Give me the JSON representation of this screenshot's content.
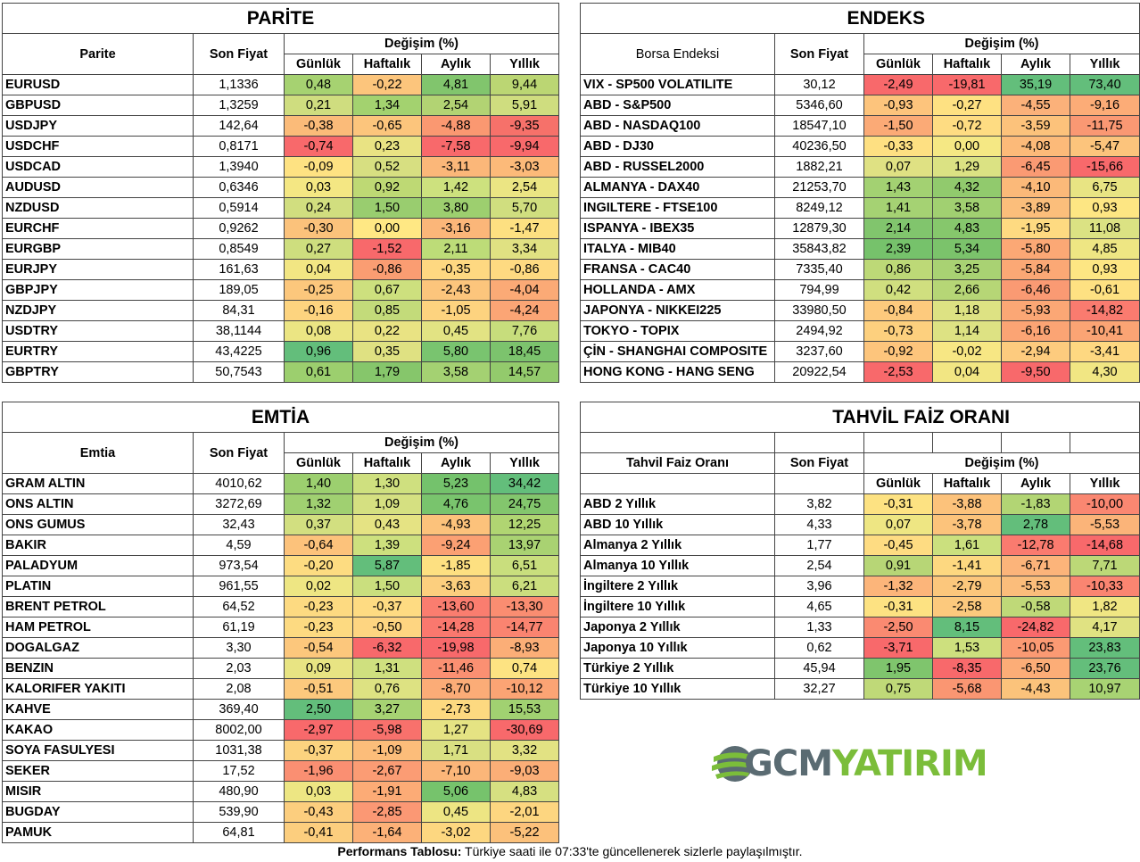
{
  "parite": {
    "title": "PARİTE",
    "col_name": "Parite",
    "col_price": "Son Fiyat",
    "col_change": "Değişim (%)",
    "periods": [
      "Günlük",
      "Haftalık",
      "Aylık",
      "Yıllık"
    ],
    "rows": [
      {
        "name": "EURUSD",
        "price": "1,1336",
        "vals": [
          "0,48",
          "-0,22",
          "4,81",
          "9,44"
        ],
        "colors": [
          "#a6d271",
          "#fcc57c",
          "#81c56d",
          "#bbd673"
        ]
      },
      {
        "name": "GBPUSD",
        "price": "1,3259",
        "vals": [
          "0,21",
          "1,34",
          "2,54",
          "5,91"
        ],
        "colors": [
          "#cfdd7f",
          "#a3d26f",
          "#b2d373",
          "#cfdd7f"
        ]
      },
      {
        "name": "USDJPY",
        "price": "142,64",
        "vals": [
          "-0,38",
          "-0,65",
          "-4,88",
          "-9,35"
        ],
        "colors": [
          "#fbbb79",
          "#fcc57c",
          "#fa9871",
          "#f6716a"
        ]
      },
      {
        "name": "USDCHF",
        "price": "0,8171",
        "vals": [
          "-0,74",
          "0,23",
          "-7,58",
          "-9,94"
        ],
        "colors": [
          "#f8696b",
          "#e9e383",
          "#f8696b",
          "#f8696b"
        ]
      },
      {
        "name": "USDCAD",
        "price": "1,3940",
        "vals": [
          "-0,09",
          "0,52",
          "-3,11",
          "-3,03"
        ],
        "colors": [
          "#fee282",
          "#d7df81",
          "#fbb779",
          "#fcba79"
        ]
      },
      {
        "name": "AUDUSD",
        "price": "0,6346",
        "vals": [
          "0,03",
          "0,92",
          "1,42",
          "2,54"
        ],
        "colors": [
          "#f4e783",
          "#bed974",
          "#cde17e",
          "#ebe583"
        ]
      },
      {
        "name": "NZDUSD",
        "price": "0,5914",
        "vals": [
          "0,24",
          "1,50",
          "3,80",
          "5,70"
        ],
        "colors": [
          "#d1de7f",
          "#99cd6f",
          "#9dcf6f",
          "#d0de7f"
        ]
      },
      {
        "name": "EURCHF",
        "price": "0,9262",
        "vals": [
          "-0,30",
          "0,00",
          "-3,16",
          "-1,47"
        ],
        "colors": [
          "#fbc27b",
          "#ffe884",
          "#fbb679",
          "#fde081"
        ]
      },
      {
        "name": "EURGBP",
        "price": "0,8549",
        "vals": [
          "0,27",
          "-1,52",
          "2,11",
          "3,34"
        ],
        "colors": [
          "#cede7e",
          "#f8696b",
          "#bddc78",
          "#e0e182"
        ]
      },
      {
        "name": "EURJPY",
        "price": "161,63",
        "vals": [
          "0,04",
          "-0,86",
          "-0,35",
          "-0,86"
        ],
        "colors": [
          "#f2e683",
          "#fa9d72",
          "#fed881",
          "#feda81"
        ]
      },
      {
        "name": "GBPJPY",
        "price": "189,05",
        "vals": [
          "-0,25",
          "0,67",
          "-2,43",
          "-4,04"
        ],
        "colors": [
          "#fcc77c",
          "#cde07e",
          "#fcc57c",
          "#fbaa76"
        ]
      },
      {
        "name": "NZDJPY",
        "price": "84,31",
        "vals": [
          "-0,16",
          "0,85",
          "-1,05",
          "-4,24"
        ],
        "colors": [
          "#fdd47f",
          "#c3db7a",
          "#fdd37f",
          "#fba575"
        ]
      },
      {
        "name": "USDTRY",
        "price": "38,1144",
        "vals": [
          "0,08",
          "0,22",
          "0,45",
          "7,76"
        ],
        "colors": [
          "#ebe583",
          "#e9e383",
          "#e2e383",
          "#c7dd7c"
        ]
      },
      {
        "name": "EURTRY",
        "price": "43,4225",
        "vals": [
          "0,96",
          "0,35",
          "5,80",
          "18,45"
        ],
        "colors": [
          "#63be7b",
          "#dfe182",
          "#79c46f",
          "#7cc36d"
        ]
      },
      {
        "name": "GBPTRY",
        "price": "50,7543",
        "vals": [
          "0,61",
          "1,79",
          "3,58",
          "14,57"
        ],
        "colors": [
          "#9ccf6e",
          "#86c66b",
          "#a4d172",
          "#93ca6c"
        ]
      }
    ]
  },
  "endeks": {
    "title": "ENDEKS",
    "col_name": "Borsa Endeksi",
    "col_price": "Son Fiyat",
    "col_change": "Değişim (%)",
    "periods": [
      "Günlük",
      "Haftalık",
      "Aylık",
      "Yıllık"
    ],
    "rows": [
      {
        "name": "VIX  - SP500 VOLATILITE",
        "price": "30,12",
        "vals": [
          "-2,49",
          "-19,81",
          "35,19",
          "73,40"
        ],
        "colors": [
          "#f8696b",
          "#f8696b",
          "#63be7b",
          "#63be7b"
        ]
      },
      {
        "name": "ABD - S&P500",
        "price": "5346,60",
        "vals": [
          "-0,93",
          "-0,27",
          "-4,55",
          "-9,16"
        ],
        "colors": [
          "#fdc47c",
          "#fee182",
          "#fbb17a",
          "#fcac77"
        ]
      },
      {
        "name": "ABD - NASDAQ100",
        "price": "18547,10",
        "vals": [
          "-1,50",
          "-0,72",
          "-3,59",
          "-11,75"
        ],
        "colors": [
          "#fbaa76",
          "#fedc82",
          "#fcc27b",
          "#fa9873"
        ]
      },
      {
        "name": "ABD - DJ30",
        "price": "40236,50",
        "vals": [
          "-0,33",
          "0,00",
          "-4,08",
          "-5,47"
        ],
        "colors": [
          "#fee082",
          "#f5e884",
          "#fcba79",
          "#fcc47c"
        ]
      },
      {
        "name": "ABD - RUSSEL2000",
        "price": "1882,21",
        "vals": [
          "0,07",
          "1,29",
          "-6,45",
          "-15,66"
        ],
        "colors": [
          "#dfe183",
          "#dbe283",
          "#fa9a73",
          "#f8696b"
        ]
      },
      {
        "name": "ALMANYA - DAX40",
        "price": "21253,70",
        "vals": [
          "1,43",
          "4,32",
          "-4,10",
          "6,75"
        ],
        "colors": [
          "#a3d172",
          "#91ca6d",
          "#fbb979",
          "#e8e483"
        ]
      },
      {
        "name": "INGILTERE - FTSE100",
        "price": "8249,12",
        "vals": [
          "1,41",
          "3,58",
          "-3,89",
          "0,93"
        ],
        "colors": [
          "#a5d273",
          "#a1d071",
          "#fbbe7b",
          "#fde683"
        ]
      },
      {
        "name": "ISPANYA - IBEX35",
        "price": "12879,30",
        "vals": [
          "2,14",
          "4,83",
          "-1,95",
          "11,08"
        ],
        "colors": [
          "#81c56d",
          "#86c76c",
          "#feda81",
          "#dbe283"
        ]
      },
      {
        "name": "ITALYA - MIB40",
        "price": "35843,82",
        "vals": [
          "2,39",
          "5,34",
          "-5,80",
          "4,85"
        ],
        "colors": [
          "#76c26b",
          "#7bc36b",
          "#fba875",
          "#eee683"
        ]
      },
      {
        "name": "FRANSA - CAC40",
        "price": "7335,40",
        "vals": [
          "0,86",
          "3,25",
          "-5,84",
          "0,93"
        ],
        "colors": [
          "#bdd977",
          "#a9d273",
          "#fba875",
          "#fde683"
        ]
      },
      {
        "name": "HOLLANDA - AMX",
        "price": "794,99",
        "vals": [
          "0,42",
          "2,66",
          "-6,46",
          "-0,61"
        ],
        "colors": [
          "#d0df7f",
          "#b6d676",
          "#fa9a73",
          "#fee182"
        ]
      },
      {
        "name": "JAPONYA - NIKKEI225",
        "price": "33980,50",
        "vals": [
          "-0,84",
          "1,18",
          "-5,93",
          "-14,82"
        ],
        "colors": [
          "#fdca7d",
          "#dde283",
          "#fba775",
          "#fa7b6f"
        ]
      },
      {
        "name": "TOKYO - TOPIX",
        "price": "2494,92",
        "vals": [
          "-0,73",
          "1,14",
          "-6,16",
          "-10,41"
        ],
        "colors": [
          "#fdd07e",
          "#dde283",
          "#fba474",
          "#fba474"
        ]
      },
      {
        "name": "ÇİN - SHANGHAI COMPOSITE",
        "price": "3237,60",
        "vals": [
          "-0,92",
          "-0,02",
          "-2,94",
          "-3,41"
        ],
        "colors": [
          "#fdc57c",
          "#f7e784",
          "#fdcb7e",
          "#fed881"
        ]
      },
      {
        "name": "HONG KONG - HANG SENG",
        "price": "20922,54",
        "vals": [
          "-2,53",
          "0,04",
          "-9,50",
          "4,30"
        ],
        "colors": [
          "#f8696b",
          "#f2e683",
          "#f8696b",
          "#f1e683"
        ]
      }
    ]
  },
  "emtia": {
    "title": "EMTİA",
    "col_name": "Emtia",
    "col_price": "Son Fiyat",
    "col_change": "Değişim (%)",
    "periods": [
      "Günlük",
      "Haftalık",
      "Aylık",
      "Yıllık"
    ],
    "rows": [
      {
        "name": "GRAM ALTIN",
        "price": "4010,62",
        "vals": [
          "1,40",
          "1,30",
          "5,23",
          "34,42"
        ],
        "colors": [
          "#9ccf6f",
          "#cfe07f",
          "#74c26c",
          "#63be7b"
        ]
      },
      {
        "name": "ONS ALTIN",
        "price": "3272,69",
        "vals": [
          "1,32",
          "1,09",
          "4,76",
          "24,75"
        ],
        "colors": [
          "#a0d071",
          "#d5e081",
          "#79c46d",
          "#83c66d"
        ]
      },
      {
        "name": "ONS GUMUS",
        "price": "32,43",
        "vals": [
          "0,37",
          "0,43",
          "-4,93",
          "12,25"
        ],
        "colors": [
          "#d2df80",
          "#e5e383",
          "#fcc27b",
          "#b0d572"
        ]
      },
      {
        "name": "BAKIR",
        "price": "4,59",
        "vals": [
          "-0,64",
          "1,39",
          "-9,24",
          "13,97"
        ],
        "colors": [
          "#fcc27b",
          "#cde07e",
          "#fba073",
          "#a9d272"
        ]
      },
      {
        "name": "PALADYUM",
        "price": "973,54",
        "vals": [
          "-0,20",
          "5,87",
          "-1,85",
          "6,51"
        ],
        "colors": [
          "#fddc81",
          "#63be7b",
          "#fde081",
          "#c9de7d"
        ]
      },
      {
        "name": "PLATIN",
        "price": "961,55",
        "vals": [
          "0,02",
          "1,50",
          "-3,63",
          "6,21"
        ],
        "colors": [
          "#eee683",
          "#cadf7e",
          "#fccf7e",
          "#cbde7e"
        ]
      },
      {
        "name": "BRENT PETROL",
        "price": "64,52",
        "vals": [
          "-0,23",
          "-0,37",
          "-13,60",
          "-13,30"
        ],
        "colors": [
          "#fdda81",
          "#fedb82",
          "#fa7d6f",
          "#fa8d71"
        ]
      },
      {
        "name": "HAM PETROL",
        "price": "61,19",
        "vals": [
          "-0,23",
          "-0,50",
          "-14,28",
          "-14,77"
        ],
        "colors": [
          "#fdda81",
          "#fed581",
          "#fa786e",
          "#fa8470"
        ]
      },
      {
        "name": "DOGALGAZ",
        "price": "3,30",
        "vals": [
          "-0,54",
          "-6,32",
          "-19,98",
          "-8,93"
        ],
        "colors": [
          "#fcc77c",
          "#f8696b",
          "#f8696b",
          "#fbae77"
        ]
      },
      {
        "name": "BENZIN",
        "price": "2,03",
        "vals": [
          "0,09",
          "1,31",
          "-11,46",
          "0,74"
        ],
        "colors": [
          "#e8e483",
          "#cfe07f",
          "#fb9072",
          "#fde382"
        ]
      },
      {
        "name": "KALORIFER YAKITI",
        "price": "2,08",
        "vals": [
          "-0,51",
          "0,76",
          "-8,70",
          "-10,12"
        ],
        "colors": [
          "#fcc97d",
          "#dde282",
          "#fbac77",
          "#fba474"
        ]
      },
      {
        "name": "KAHVE",
        "price": "369,40",
        "vals": [
          "2,50",
          "3,27",
          "-2,73",
          "15,53"
        ],
        "colors": [
          "#63be7b",
          "#a7d373",
          "#fdd980",
          "#a1d171"
        ]
      },
      {
        "name": "KAKAO",
        "price": "8002,00",
        "vals": [
          "-2,97",
          "-5,98",
          "1,27",
          "-30,69"
        ],
        "colors": [
          "#f8696b",
          "#f8716c",
          "#e5e383",
          "#f8696b"
        ]
      },
      {
        "name": "SOYA FASULYESI",
        "price": "1031,38",
        "vals": [
          "-0,37",
          "-1,09",
          "1,71",
          "3,32"
        ],
        "colors": [
          "#fcd37f",
          "#fcbd7a",
          "#d9e082",
          "#e2e283"
        ]
      },
      {
        "name": "SEKER",
        "price": "17,52",
        "vals": [
          "-1,96",
          "-2,67",
          "-7,10",
          "-9,03"
        ],
        "colors": [
          "#fa8f72",
          "#fb9c74",
          "#fbb679",
          "#fbae77"
        ]
      },
      {
        "name": "MISIR",
        "price": "480,90",
        "vals": [
          "0,03",
          "-1,91",
          "5,06",
          "4,83"
        ],
        "colors": [
          "#ede683",
          "#fcab76",
          "#76c36c",
          "#d6e081"
        ]
      },
      {
        "name": "BUGDAY",
        "price": "539,90",
        "vals": [
          "-0,43",
          "-2,85",
          "0,45",
          "-2,01"
        ],
        "colors": [
          "#fcce7e",
          "#fb9874",
          "#ede583",
          "#fdd680"
        ]
      },
      {
        "name": "PAMUK",
        "price": "64,81",
        "vals": [
          "-0,41",
          "-1,64",
          "-3,02",
          "-5,22"
        ],
        "colors": [
          "#fcce7e",
          "#fcb178",
          "#fdd780",
          "#fcc17b"
        ]
      }
    ]
  },
  "tahvil": {
    "title": "TAHVİL FAİZ ORANI",
    "col_name": "Tahvil Faiz Oranı",
    "col_price": "Son Fiyat",
    "col_change": "Değişim (%)",
    "periods": [
      "Günlük",
      "Haftalık",
      "Aylık",
      "Yıllık"
    ],
    "rows": [
      {
        "name": "ABD 2 Yıllık",
        "price": "3,82",
        "vals": [
          "-0,31",
          "-3,88",
          "-1,83",
          "-10,00"
        ],
        "colors": [
          "#fde282",
          "#fcc27b",
          "#b2d574",
          "#fa8771"
        ]
      },
      {
        "name": "ABD 10 Yıllık",
        "price": "4,33",
        "vals": [
          "0,07",
          "-3,78",
          "2,78",
          "-5,53"
        ],
        "colors": [
          "#eee683",
          "#fcc37b",
          "#63be7b",
          "#fbb479"
        ]
      },
      {
        "name": "Almanya 2 Yıllık",
        "price": "1,77",
        "vals": [
          "-0,45",
          "1,61",
          "-12,78",
          "-14,68"
        ],
        "colors": [
          "#fedc82",
          "#cbe07e",
          "#fa7b6f",
          "#f8696b"
        ]
      },
      {
        "name": "Almanya 10 Yıllık",
        "price": "2,54",
        "vals": [
          "0,91",
          "-1,41",
          "-6,71",
          "7,71"
        ],
        "colors": [
          "#b7d676",
          "#fdd880",
          "#fcb47a",
          "#bcd877"
        ]
      },
      {
        "name": "İngiltere 2 Yıllık",
        "price": "3,96",
        "vals": [
          "-1,32",
          "-2,79",
          "-5,53",
          "-10,33"
        ],
        "colors": [
          "#fcb57a",
          "#fcc77c",
          "#fbbd7b",
          "#fa8571"
        ]
      },
      {
        "name": "İngiltere 10 Yıllık",
        "price": "4,65",
        "vals": [
          "-0,31",
          "-2,58",
          "-0,58",
          "1,82"
        ],
        "colors": [
          "#fde282",
          "#fcc97d",
          "#bfd978",
          "#f0e683"
        ]
      },
      {
        "name": "Japonya 2 Yıllık",
        "price": "1,33",
        "vals": [
          "-2,50",
          "8,15",
          "-24,82",
          "4,17"
        ],
        "colors": [
          "#fa8a71",
          "#63be7b",
          "#f8696b",
          "#e0e282"
        ]
      },
      {
        "name": "Japonya 10 Yıllık",
        "price": "0,62",
        "vals": [
          "-3,71",
          "1,53",
          "-10,05",
          "23,83"
        ],
        "colors": [
          "#f8696b",
          "#cde07e",
          "#fb9a73",
          "#63be7b"
        ]
      },
      {
        "name": "Türkiye 2 Yıllık",
        "price": "45,94",
        "vals": [
          "1,95",
          "-8,35",
          "-6,50",
          "23,76"
        ],
        "colors": [
          "#7fc56d",
          "#f8696b",
          "#fcad77",
          "#64be7b"
        ]
      },
      {
        "name": "Türkiye 10 Yıllık",
        "price": "32,27",
        "vals": [
          "0,75",
          "-5,68",
          "-4,43",
          "10,97"
        ],
        "colors": [
          "#bfd978",
          "#fa9672",
          "#fbc37b",
          "#a8d373"
        ]
      }
    ]
  },
  "logo": {
    "part1": "GCM",
    "part2": "YATIRIM"
  },
  "footer": {
    "bold": "Performans Tablosu:",
    "text": " Türkiye saati ile 07:33'te güncellenerek sizlerle paylaşılmıştır."
  }
}
